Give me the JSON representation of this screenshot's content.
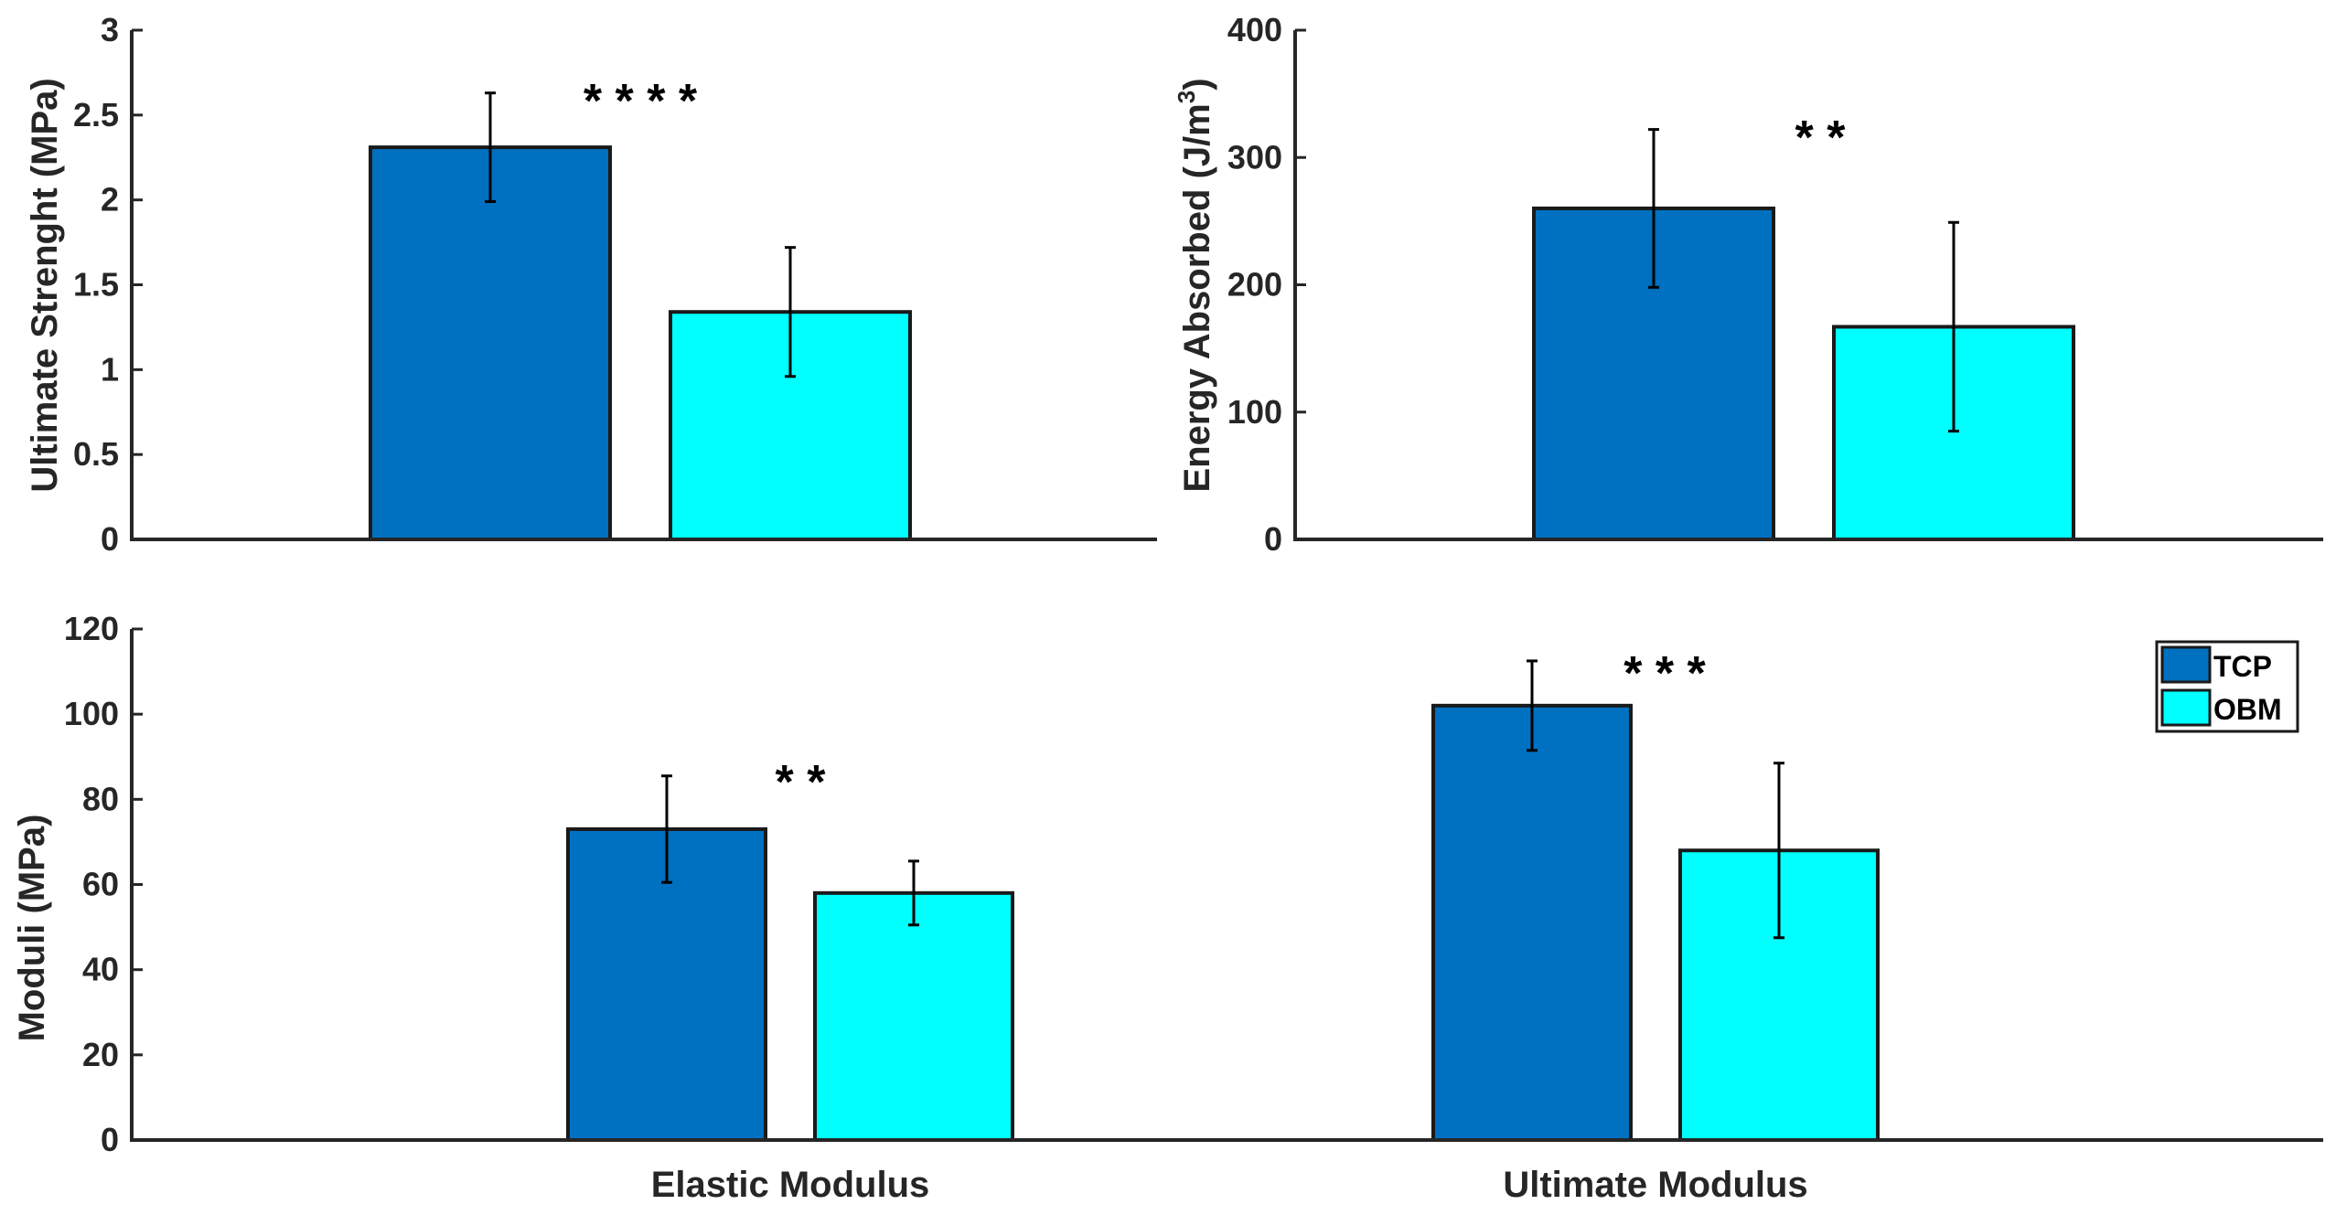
{
  "colors": {
    "tcp": "#0070C0",
    "obm": "#00FFFF",
    "axis": "#262626",
    "bar_edge": "#1a1a1a"
  },
  "legend": {
    "items": [
      {
        "label": "TCP",
        "color": "#0070C0"
      },
      {
        "label": "OBM",
        "color": "#00FFFF"
      }
    ]
  },
  "chart_data": [
    {
      "id": "ultimate-strength",
      "type": "bar",
      "ylabel": "Ultimate Strenght (MPa)",
      "ylim": [
        0,
        3
      ],
      "yticks": [
        0,
        0.5,
        1,
        1.5,
        2,
        2.5,
        3
      ],
      "ytick_labels": [
        "0",
        "0.5",
        "1",
        "1.5",
        "2",
        "2.5",
        "3"
      ],
      "series": [
        {
          "name": "TCP",
          "values": [
            2.31
          ],
          "errors": [
            0.32
          ]
        },
        {
          "name": "OBM",
          "values": [
            1.34
          ],
          "errors": [
            0.38
          ]
        }
      ],
      "significance": [
        "* * * *"
      ]
    },
    {
      "id": "energy-absorbed",
      "type": "bar",
      "ylabel": "Energy Absorbed (J/m",
      "ylabel_sup": "3",
      "ylabel_end": ")",
      "ylim": [
        0,
        400
      ],
      "yticks": [
        0,
        100,
        200,
        300,
        400
      ],
      "ytick_labels": [
        "0",
        "100",
        "200",
        "300",
        "400"
      ],
      "series": [
        {
          "name": "TCP",
          "values": [
            260
          ],
          "errors": [
            62
          ]
        },
        {
          "name": "OBM",
          "values": [
            167
          ],
          "errors": [
            82
          ]
        }
      ],
      "significance": [
        "* *"
      ]
    },
    {
      "id": "moduli",
      "type": "bar",
      "ylabel": "Moduli (MPa)",
      "ylim": [
        0,
        120
      ],
      "yticks": [
        0,
        20,
        40,
        60,
        80,
        100,
        120
      ],
      "ytick_labels": [
        "0",
        "20",
        "40",
        "60",
        "80",
        "100",
        "120"
      ],
      "categories": [
        "Elastic Modulus",
        "Ultimate Modulus"
      ],
      "series": [
        {
          "name": "TCP",
          "values": [
            73,
            102
          ],
          "errors": [
            12.5,
            10.5
          ]
        },
        {
          "name": "OBM",
          "values": [
            58,
            68
          ],
          "errors": [
            7.5,
            20.5
          ]
        }
      ],
      "significance": [
        "* *",
        "* * *"
      ]
    }
  ]
}
